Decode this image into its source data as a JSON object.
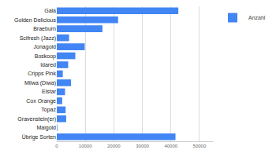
{
  "chart_data": {
    "type": "bar",
    "orientation": "horizontal",
    "categories": [
      "Gala",
      "Golden Delicious",
      "Braeburn",
      "Scifresh (Jazz)",
      "Jonagold",
      "Boskoop",
      "Idared",
      "Cripps Pink",
      "Milwa (Diwa)",
      "Elstar",
      "Cox Orange",
      "Topaz",
      "Gravenstein(er)",
      "Maigold",
      "Übrige Sorten"
    ],
    "series": [
      {
        "name": "Anzahl",
        "color": "#4285f4",
        "values": [
          42600,
          21500,
          16000,
          4300,
          9800,
          6500,
          4000,
          2100,
          5000,
          2900,
          1900,
          3100,
          3300,
          200,
          41600
        ]
      }
    ],
    "xlim": [
      0,
      55000
    ],
    "xticks": [
      0,
      10000,
      20000,
      30000,
      40000,
      50000
    ],
    "grid": true,
    "legend": "top-right"
  }
}
